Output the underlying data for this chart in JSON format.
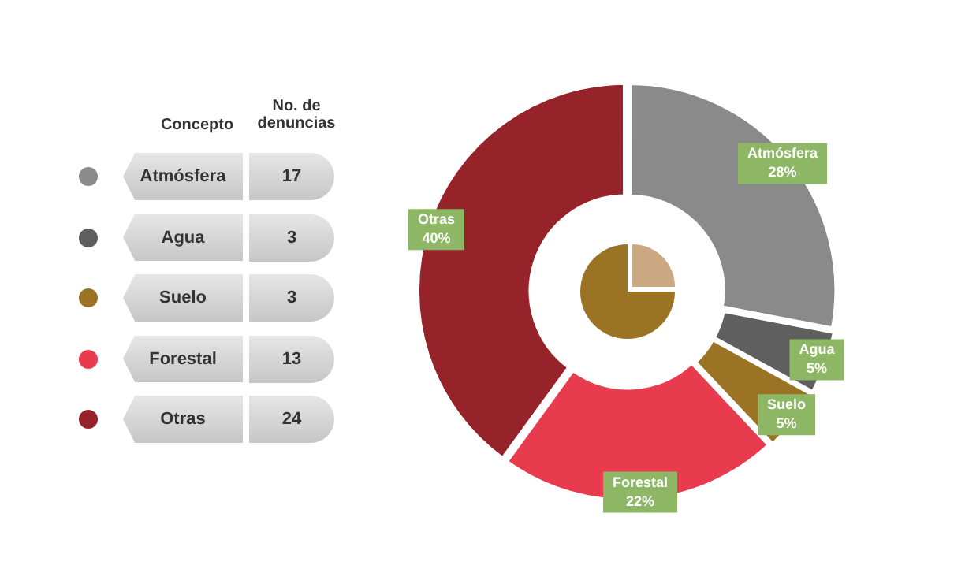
{
  "chart_data": [
    {
      "type": "other",
      "annotations": [
        "Concepto",
        "No. de denuncias"
      ],
      "categories": [
        "Atmósfera",
        "Agua",
        "Suelo",
        "Forestal",
        "Otras"
      ],
      "values": [
        17,
        3,
        3,
        13,
        24
      ],
      "data_labels": true
    },
    {
      "type": "donut",
      "categories": [
        "Atmósfera",
        "Agua",
        "Suelo",
        "Forestal",
        "Otras"
      ],
      "values": [
        28,
        5,
        5,
        22,
        40
      ],
      "colors": [
        "#8a8a8a",
        "#5f5f5f",
        "#9a7424",
        "#e83c4e",
        "#962329"
      ],
      "value_labels": [
        "28%",
        "5%",
        "5%",
        "22%",
        "40%"
      ]
    }
  ]
}
